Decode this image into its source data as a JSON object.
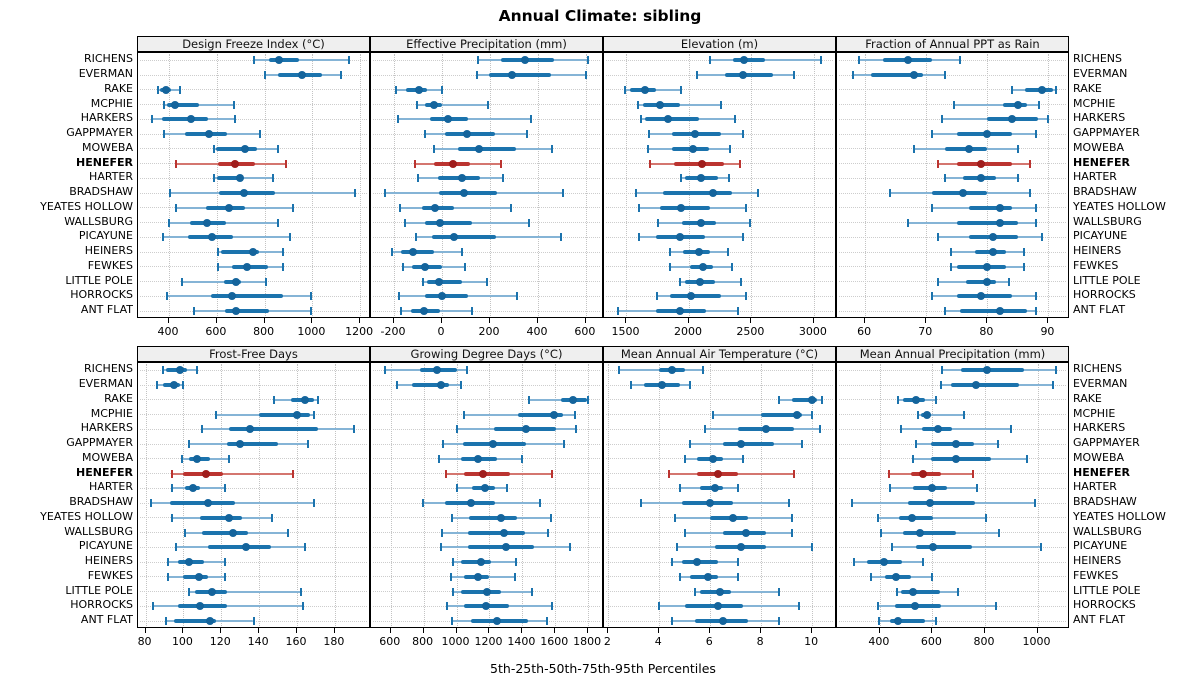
{
  "title": "Annual Climate: sibling",
  "subtitle": "5th-25th-50th-75th-95th Percentiles",
  "highlight_site": "HENEFER",
  "colors": {
    "blue_thin": "#85b4d6",
    "blue_main": "#1b73ad",
    "blue_dot": "#14649c",
    "red_thin": "#d4766f",
    "red_main": "#bb3430",
    "red_dot": "#a01d1c",
    "header_bg": "#efefef",
    "grid": "#c8c8c8",
    "border": "#000000"
  },
  "sites": [
    "RICHENS",
    "EVERMAN",
    "RAKE",
    "MCPHIE",
    "HARKERS",
    "GAPPMAYER",
    "MOWEBA",
    "HENEFER",
    "HARTER",
    "BRADSHAW",
    "YEATES HOLLOW",
    "WALLSBURG",
    "PICAYUNE",
    "HEINERS",
    "FEWKES",
    "LITTLE POLE",
    "HORROCKS",
    "ANT FLAT"
  ],
  "chart_data": {
    "type": "dotplot-percentiles",
    "percentile_labels": [
      "5th",
      "25th",
      "50th",
      "75th",
      "95th"
    ],
    "legend_position": "none",
    "grid": "dotted",
    "panels": [
      {
        "title": "Design Freeze Index (°C)",
        "xlim": [
          270,
          1237
        ],
        "ticks": [
          400,
          600,
          800,
          1000,
          1200
        ],
        "values": [
          [
            755,
            820,
            860,
            945,
            1155
          ],
          [
            800,
            855,
            955,
            1040,
            1120
          ],
          [
            355,
            362,
            386,
            410,
            445
          ],
          [
            380,
            390,
            425,
            525,
            670
          ],
          [
            330,
            372,
            492,
            565,
            675
          ],
          [
            380,
            466,
            568,
            642,
            780
          ],
          [
            587,
            595,
            717,
            768,
            858
          ],
          [
            428,
            603,
            677,
            760,
            890
          ],
          [
            590,
            600,
            695,
            710,
            835
          ],
          [
            405,
            608,
            715,
            845,
            1180
          ],
          [
            428,
            556,
            652,
            718,
            918
          ],
          [
            398,
            487,
            559,
            640,
            858
          ],
          [
            373,
            480,
            580,
            667,
            905
          ],
          [
            605,
            618,
            750,
            775,
            875
          ],
          [
            605,
            663,
            728,
            815,
            875
          ],
          [
            455,
            628,
            680,
            700,
            805
          ],
          [
            390,
            575,
            665,
            875,
            995
          ],
          [
            505,
            635,
            680,
            820,
            995
          ]
        ]
      },
      {
        "title": "Effective Precipitation (mm)",
        "xlim": [
          -296,
          667
        ],
        "ticks": [
          -200,
          0,
          200,
          400,
          600
        ],
        "values": [
          [
            150,
            245,
            345,
            465,
            610
          ],
          [
            145,
            195,
            293,
            455,
            600
          ],
          [
            -190,
            -149,
            -97,
            -62,
            0
          ],
          [
            -103,
            -72,
            -35,
            2,
            193
          ],
          [
            -183,
            -48,
            27,
            110,
            372
          ],
          [
            -72,
            11,
            103,
            220,
            354
          ],
          [
            -35,
            66,
            155,
            310,
            460
          ],
          [
            -113,
            -35,
            44,
            117,
            248
          ],
          [
            -99,
            -17,
            83,
            158,
            254
          ],
          [
            -238,
            -14,
            92,
            230,
            503
          ],
          [
            -175,
            -83,
            -31,
            48,
            289
          ],
          [
            -155,
            -72,
            -7,
            126,
            362
          ],
          [
            -107,
            -41,
            48,
            227,
            498
          ],
          [
            -209,
            -172,
            -121,
            -35,
            83
          ],
          [
            -161,
            -124,
            -69,
            2,
            95
          ],
          [
            -80,
            -62,
            -11,
            83,
            188
          ],
          [
            -179,
            -72,
            2,
            110,
            314
          ],
          [
            -172,
            -131,
            -76,
            -7,
            124
          ]
        ]
      },
      {
        "title": "Elevation (m)",
        "xlim": [
          1320,
          3169
        ],
        "ticks": [
          1500,
          2000,
          2500,
          3000
        ],
        "values": [
          [
            2165,
            2350,
            2440,
            2605,
            3055
          ],
          [
            2065,
            2290,
            2430,
            2670,
            2840
          ],
          [
            1485,
            1525,
            1650,
            1735,
            1940
          ],
          [
            1595,
            1630,
            1772,
            1926,
            2257
          ],
          [
            1615,
            1650,
            1830,
            2080,
            2370
          ],
          [
            1680,
            1865,
            2050,
            2257,
            2435
          ],
          [
            1670,
            1865,
            2030,
            2157,
            2330
          ],
          [
            1690,
            1880,
            2105,
            2280,
            2410
          ],
          [
            1940,
            1970,
            2095,
            2230,
            2320
          ],
          [
            1577,
            1794,
            2190,
            2345,
            2555
          ],
          [
            1600,
            1770,
            1940,
            2170,
            2460
          ],
          [
            1755,
            1945,
            2098,
            2217,
            2490
          ],
          [
            1600,
            1740,
            1925,
            2125,
            2435
          ],
          [
            1845,
            1953,
            2080,
            2170,
            2315
          ],
          [
            1850,
            2010,
            2110,
            2196,
            2345
          ],
          [
            1925,
            1965,
            2090,
            2205,
            2415
          ],
          [
            1745,
            1845,
            2020,
            2257,
            2460
          ],
          [
            1430,
            1740,
            1930,
            2133,
            2390
          ]
        ]
      },
      {
        "title": "Fraction of Annual PPT as Rain",
        "xlim": [
          55.4,
          93.2
        ],
        "ticks": [
          60,
          70,
          80,
          90
        ],
        "values": [
          [
            59,
            63,
            67,
            71,
            75.5
          ],
          [
            58,
            61,
            68,
            69.5,
            73
          ],
          [
            84,
            86.2,
            89,
            90.8,
            91.2
          ],
          [
            74.5,
            82.5,
            85,
            86.5,
            88.5
          ],
          [
            72.5,
            80,
            84,
            88.3,
            90
          ],
          [
            71,
            75,
            80,
            84,
            88
          ],
          [
            68,
            73,
            77,
            80,
            85
          ],
          [
            72,
            75,
            79,
            84,
            87
          ],
          [
            73,
            76,
            79,
            81.5,
            85
          ],
          [
            64,
            71,
            76,
            80,
            87
          ],
          [
            71,
            77,
            82,
            84,
            88
          ],
          [
            67,
            75,
            82,
            85,
            88
          ],
          [
            72,
            77,
            81,
            85,
            89
          ],
          [
            74,
            78,
            81,
            83,
            86
          ],
          [
            74,
            75,
            80,
            83,
            86
          ],
          [
            72,
            76.5,
            80,
            81.5,
            83.5
          ],
          [
            71,
            75,
            79,
            84,
            88
          ],
          [
            73,
            75.5,
            82,
            86.5,
            88
          ]
        ]
      },
      {
        "title": "Frost-Free Days",
        "xlim": [
          76,
          198
        ],
        "ticks": [
          80,
          100,
          120,
          140,
          160,
          180
        ],
        "values": [
          [
            89,
            91,
            98,
            102,
            107
          ],
          [
            86,
            89,
            95,
            98,
            100
          ],
          [
            148,
            157,
            164,
            169,
            171
          ],
          [
            117,
            140,
            160,
            167,
            169
          ],
          [
            110,
            124,
            135,
            171,
            190
          ],
          [
            103,
            123,
            130,
            150,
            166
          ],
          [
            99,
            103,
            107,
            114,
            124
          ],
          [
            94,
            100,
            112,
            121,
            158
          ],
          [
            94,
            101,
            105,
            109,
            122
          ],
          [
            83,
            93,
            113,
            127,
            169
          ],
          [
            94,
            109,
            124,
            131,
            147
          ],
          [
            101,
            110,
            126,
            134,
            155
          ],
          [
            96,
            113,
            133,
            146,
            164
          ],
          [
            92,
            97,
            103,
            111,
            122
          ],
          [
            92,
            100,
            108,
            113,
            122
          ],
          [
            103,
            106,
            115,
            123,
            162
          ],
          [
            84,
            97,
            109,
            123,
            163
          ],
          [
            91,
            95,
            114,
            117,
            137
          ]
        ]
      },
      {
        "title": "Growing Degree Days (°C)",
        "xlim": [
          480,
          1884
        ],
        "ticks": [
          600,
          800,
          1000,
          1200,
          1400,
          1600,
          1800
        ],
        "values": [
          [
            565,
            775,
            880,
            1005,
            1065
          ],
          [
            636,
            731,
            905,
            955,
            1030
          ],
          [
            1440,
            1635,
            1710,
            1790,
            1800
          ],
          [
            1045,
            1372,
            1590,
            1645,
            1720
          ],
          [
            1000,
            1228,
            1420,
            1607,
            1727
          ],
          [
            920,
            1040,
            1222,
            1423,
            1650
          ],
          [
            895,
            1027,
            1130,
            1248,
            1400
          ],
          [
            937,
            1045,
            1162,
            1326,
            1583
          ],
          [
            1005,
            1095,
            1172,
            1236,
            1308
          ],
          [
            795,
            930,
            1090,
            1232,
            1510
          ],
          [
            975,
            1075,
            1268,
            1370,
            1573
          ],
          [
            911,
            1071,
            1286,
            1419,
            1557
          ],
          [
            907,
            1068,
            1298,
            1469,
            1688
          ],
          [
            980,
            1030,
            1148,
            1212,
            1363
          ],
          [
            967,
            1047,
            1131,
            1196,
            1357
          ],
          [
            980,
            1030,
            1188,
            1268,
            1460
          ],
          [
            940,
            1047,
            1178,
            1316,
            1583
          ],
          [
            970,
            1087,
            1248,
            1433,
            1550
          ]
        ]
      },
      {
        "title": "Mean Annual Air Temperature (°C)",
        "xlim": [
          1.83,
          10.9
        ],
        "ticks": [
          2,
          4,
          6,
          8,
          10
        ],
        "values": [
          [
            2.4,
            4.0,
            4.5,
            5.0,
            5.7
          ],
          [
            2.9,
            3.4,
            4.1,
            4.8,
            5.2
          ],
          [
            8.7,
            9.2,
            10.0,
            10.2,
            10.4
          ],
          [
            6.1,
            8.0,
            9.4,
            9.6,
            10.0
          ],
          [
            5.8,
            7.1,
            8.2,
            9.3,
            10.3
          ],
          [
            5.2,
            6.5,
            7.2,
            8.5,
            9.6
          ],
          [
            5.0,
            5.5,
            6.1,
            6.5,
            7.3
          ],
          [
            4.4,
            5.5,
            6.3,
            7.1,
            9.3
          ],
          [
            4.8,
            5.6,
            6.2,
            6.5,
            7.1
          ],
          [
            3.3,
            4.9,
            6.0,
            6.9,
            9.1
          ],
          [
            4.6,
            6.0,
            6.9,
            7.5,
            9.2
          ],
          [
            5.0,
            6.5,
            7.4,
            8.2,
            9.2
          ],
          [
            4.7,
            6.2,
            7.2,
            8.2,
            10.0
          ],
          [
            4.5,
            4.9,
            5.5,
            6.3,
            7.1
          ],
          [
            4.8,
            5.2,
            5.9,
            6.3,
            7.1
          ],
          [
            5.4,
            5.6,
            6.4,
            6.8,
            8.7
          ],
          [
            4.0,
            5.0,
            6.3,
            7.3,
            9.5
          ],
          [
            4.5,
            5.4,
            6.5,
            7.5,
            8.7
          ]
        ]
      },
      {
        "title": "Mean Annual Precipitation (mm)",
        "xlim": [
          237,
          1116
        ],
        "ticks": [
          400,
          600,
          800,
          1000
        ],
        "values": [
          [
            635,
            708,
            808,
            950,
            1070
          ],
          [
            633,
            671,
            765,
            931,
            1060
          ],
          [
            470,
            488,
            538,
            570,
            614
          ],
          [
            547,
            556,
            579,
            594,
            720
          ],
          [
            481,
            560,
            623,
            676,
            900
          ],
          [
            538,
            594,
            688,
            757,
            850
          ],
          [
            528,
            594,
            688,
            824,
            960
          ],
          [
            434,
            520,
            564,
            633,
            755
          ],
          [
            440,
            528,
            600,
            657,
            770
          ],
          [
            293,
            507,
            589,
            761,
            991
          ],
          [
            394,
            472,
            522,
            604,
            805
          ],
          [
            406,
            488,
            554,
            690,
            855
          ],
          [
            447,
            538,
            604,
            751,
            1015
          ],
          [
            300,
            350,
            415,
            485,
            565
          ],
          [
            365,
            418,
            460,
            520,
            600
          ],
          [
            466,
            482,
            527,
            630,
            696
          ],
          [
            394,
            457,
            535,
            634,
            842
          ],
          [
            396,
            438,
            470,
            570,
            614
          ]
        ]
      }
    ]
  }
}
